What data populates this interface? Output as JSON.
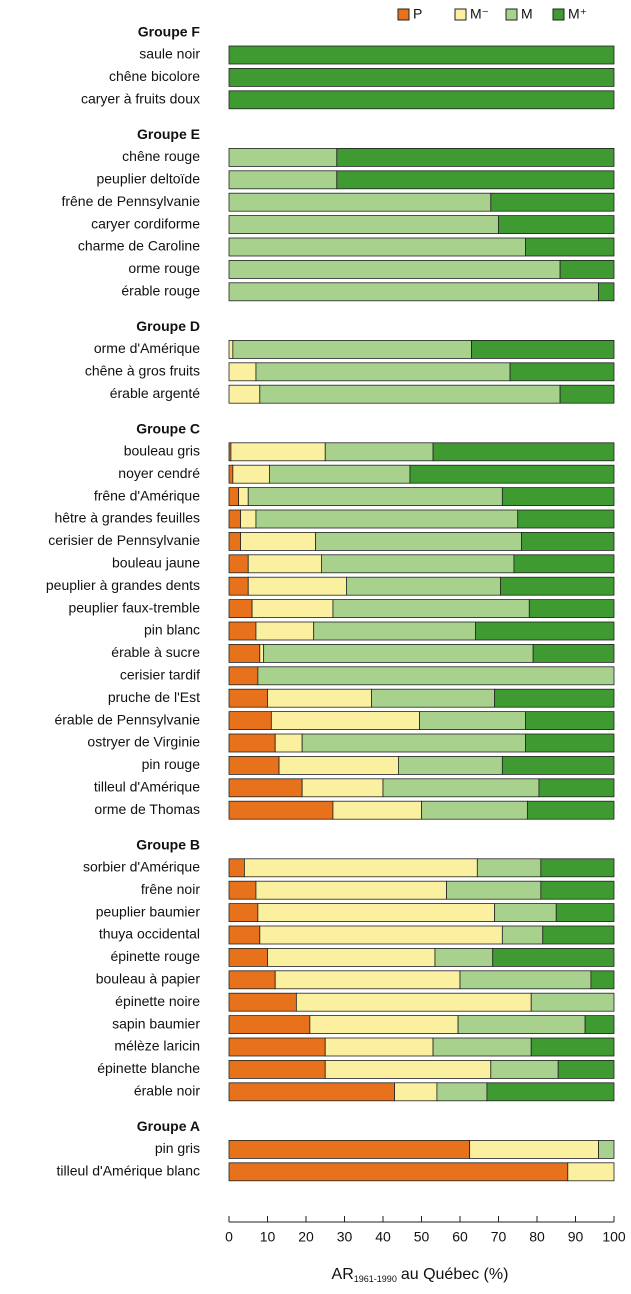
{
  "chart_data": {
    "type": "stacked-bar-horizontal",
    "series": [
      {
        "name": "P",
        "color": "#e8711c"
      },
      {
        "name": "M⁻",
        "color": "#fbf0a0"
      },
      {
        "name": "M",
        "color": "#a9d18e"
      },
      {
        "name": "M⁺",
        "color": "#3f9a31"
      }
    ],
    "groups": [
      {
        "name": "Groupe F",
        "categories": [
          "saule noir",
          "chêne bicolore",
          "caryer à fruits doux"
        ],
        "values": [
          [
            0,
            0,
            0,
            100
          ],
          [
            0,
            0,
            0,
            100
          ],
          [
            0,
            0,
            0,
            100
          ]
        ]
      },
      {
        "name": "Groupe E",
        "categories": [
          "chêne rouge",
          "peuplier deltoïde",
          "frêne de Pennsylvanie",
          "caryer cordiforme",
          "charme de Caroline",
          "orme rouge",
          "érable rouge"
        ],
        "values": [
          [
            0,
            0,
            28,
            72
          ],
          [
            0,
            0,
            28,
            72
          ],
          [
            0,
            0,
            68,
            32
          ],
          [
            0,
            0,
            70,
            30
          ],
          [
            0,
            0,
            77,
            23
          ],
          [
            0,
            0,
            86,
            14
          ],
          [
            0,
            0,
            96,
            4
          ]
        ]
      },
      {
        "name": "Groupe D",
        "categories": [
          "orme d'Amérique",
          "chêne à gros fruits",
          "érable argenté"
        ],
        "values": [
          [
            0,
            1,
            62,
            37
          ],
          [
            0,
            7,
            66,
            27
          ],
          [
            0,
            8,
            78,
            14
          ]
        ]
      },
      {
        "name": "Groupe C",
        "categories": [
          "bouleau gris",
          "noyer cendré",
          "frêne d'Amérique",
          "hêtre à grandes feuilles",
          "cerisier de Pennsylvanie",
          "bouleau jaune",
          "peuplier à grandes dents",
          "peuplier faux-tremble",
          "pin blanc",
          "érable à sucre",
          "cerisier tardif",
          "pruche de l'Est",
          "érable de Pennsylvanie",
          "ostryer de Virginie",
          "pin rouge",
          "tilleul d'Amérique",
          "orme de Thomas"
        ],
        "values": [
          [
            0.5,
            24.5,
            28,
            47
          ],
          [
            1,
            9.5,
            36.5,
            53
          ],
          [
            2.5,
            2.5,
            66,
            29
          ],
          [
            3,
            4,
            68,
            25
          ],
          [
            3,
            19.5,
            53.5,
            24
          ],
          [
            5,
            19,
            50,
            26
          ],
          [
            5,
            25.5,
            40,
            29.5
          ],
          [
            6,
            21,
            51,
            22
          ],
          [
            7,
            15,
            42,
            36
          ],
          [
            8,
            1,
            70,
            21
          ],
          [
            7.5,
            0,
            92.5,
            0
          ],
          [
            10,
            27,
            32,
            31
          ],
          [
            11,
            38.5,
            27.5,
            23
          ],
          [
            12,
            7,
            58,
            23
          ],
          [
            13,
            31,
            27,
            29
          ],
          [
            19,
            21,
            40.5,
            19.5
          ],
          [
            27,
            23,
            27.5,
            22.5
          ]
        ]
      },
      {
        "name": "Groupe B",
        "categories": [
          "sorbier d'Amérique",
          "frêne noir",
          "peuplier baumier",
          "thuya occidental",
          "épinette rouge",
          "bouleau à papier",
          "épinette noire",
          "sapin baumier",
          "mélèze laricin",
          "épinette blanche",
          "érable noir"
        ],
        "values": [
          [
            4,
            60.5,
            16.5,
            19
          ],
          [
            7,
            49.5,
            24.5,
            19
          ],
          [
            7.5,
            61.5,
            16,
            15
          ],
          [
            8,
            63,
            10.5,
            18.5
          ],
          [
            10,
            43.5,
            15,
            31.5
          ],
          [
            12,
            48,
            34,
            6
          ],
          [
            17.5,
            61,
            21.5,
            0
          ],
          [
            21,
            38.5,
            33,
            7.5
          ],
          [
            25,
            28,
            25.5,
            21.5
          ],
          [
            25,
            43,
            17.5,
            14.5
          ],
          [
            43,
            11,
            13,
            33
          ]
        ]
      },
      {
        "name": "Groupe A",
        "categories": [
          "pin gris",
          "tilleul d'Amérique blanc"
        ],
        "values": [
          [
            62.5,
            33.5,
            4,
            0
          ],
          [
            88,
            12,
            0,
            0
          ]
        ]
      }
    ],
    "xlim": [
      0,
      100
    ],
    "xticks": [
      0,
      10,
      20,
      30,
      40,
      50,
      60,
      70,
      80,
      90,
      100
    ],
    "xlabel": {
      "main": "AR",
      "sub": "1961-1990",
      "rest": "au Québec (%)"
    }
  }
}
